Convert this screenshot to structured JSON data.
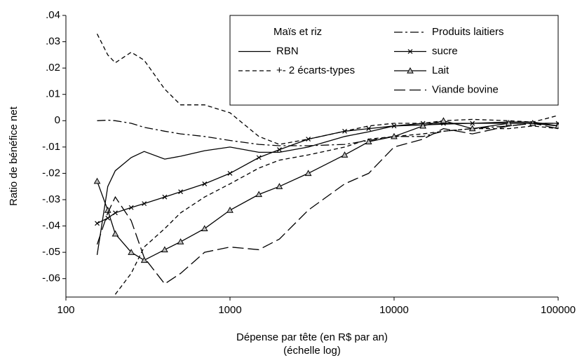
{
  "chart_data": {
    "type": "line",
    "ylabel": "Ratio de bénéfice net",
    "xlabel": [
      "Dépense par tête (en R$ par an)",
      "(échelle log)"
    ],
    "legend_title": "Maïs et riz",
    "legend": "upper right",
    "xscale": "log",
    "xlim": [
      100,
      100000
    ],
    "xticks": [
      100,
      1000,
      10000,
      100000
    ],
    "ylim": [
      -0.067,
      0.04
    ],
    "yticks": [
      {
        "value": 0.04,
        "label": ".04"
      },
      {
        "value": 0.03,
        "label": ".03"
      },
      {
        "value": 0.02,
        "label": ".02"
      },
      {
        "value": 0.01,
        "label": ".01"
      },
      0,
      {
        "value": -0.01,
        "label": "-.01"
      },
      {
        "value": -0.02,
        "label": "-.02"
      },
      {
        "value": -0.03,
        "label": "-.03"
      },
      {
        "value": -0.04,
        "label": "-.04"
      },
      {
        "value": -0.05,
        "label": "-.05"
      },
      {
        "value": -0.06,
        "label": "-.06"
      }
    ],
    "x": [
      155,
      180,
      200,
      250,
      300,
      400,
      500,
      700,
      1000,
      1500,
      2000,
      3000,
      5000,
      7000,
      10000,
      15000,
      20000,
      30000,
      50000,
      70000,
      100000
    ],
    "series": [
      {
        "name": "RBN",
        "color": "#000000",
        "dash": "solid",
        "values": [
          -0.051,
          -0.025,
          -0.019,
          -0.014,
          -0.0117,
          -0.0146,
          -0.0135,
          -0.0114,
          -0.01,
          -0.012,
          -0.012,
          -0.01,
          -0.006,
          -0.0042,
          -0.002,
          -0.0016,
          -0.0013,
          -0.001,
          -0.0005,
          -0.0005,
          -0.002
        ]
      },
      {
        "name": "+- 2 écarts-types",
        "color": "#000000",
        "dash": "dashed",
        "values": [
          0.033,
          0.025,
          0.022,
          0.026,
          0.023,
          0.012,
          0.006,
          0.006,
          0.003,
          -0.006,
          -0.009,
          -0.007,
          -0.004,
          -0.002,
          -0.001,
          -0.001,
          0,
          0.0005,
          0,
          -0.0005,
          0.002
        ],
        "lower": [
          null,
          null,
          -0.066,
          -0.058,
          -0.048,
          -0.041,
          -0.035,
          -0.029,
          -0.024,
          -0.018,
          -0.015,
          -0.013,
          -0.01,
          -0.007,
          -0.006,
          -0.005,
          -0.004,
          -0.003,
          -0.003,
          -0.002,
          -0.003
        ]
      },
      {
        "name": "Produits laitiers",
        "color": "#000000",
        "dash": "dashdot",
        "values": [
          0,
          0.0002,
          0,
          -0.001,
          -0.0025,
          -0.004,
          -0.005,
          -0.006,
          -0.0075,
          -0.009,
          -0.0095,
          -0.0095,
          -0.009,
          -0.0075,
          -0.006,
          -0.006,
          -0.004,
          -0.003,
          -0.002,
          -0.001,
          -0.001
        ]
      },
      {
        "name": "sucre",
        "color": "#000000",
        "dash": "solid",
        "marker": "x",
        "values": [
          -0.039,
          -0.037,
          -0.035,
          -0.033,
          -0.0315,
          -0.029,
          -0.027,
          -0.024,
          -0.02,
          -0.014,
          -0.011,
          -0.007,
          -0.004,
          -0.003,
          -0.002,
          -0.001,
          -0.001,
          -0.001,
          -0.001,
          -0.001,
          -0.001
        ]
      },
      {
        "name": "Lait",
        "color": "#000000",
        "dash": "solid",
        "marker": "triangle",
        "values": [
          -0.023,
          -0.034,
          -0.043,
          -0.05,
          -0.053,
          -0.049,
          -0.046,
          -0.041,
          -0.034,
          -0.028,
          -0.025,
          -0.02,
          -0.013,
          -0.008,
          -0.006,
          -0.002,
          0,
          -0.003,
          -0.001,
          -0.001,
          -0.002
        ]
      },
      {
        "name": "Viande bovine",
        "color": "#000000",
        "dash": "longdash",
        "values": [
          -0.047,
          -0.035,
          -0.029,
          -0.038,
          -0.052,
          -0.062,
          -0.058,
          -0.05,
          -0.048,
          -0.049,
          -0.045,
          -0.034,
          -0.024,
          -0.02,
          -0.01,
          -0.007,
          -0.003,
          -0.005,
          -0.002,
          -0.001,
          -0.003
        ]
      }
    ]
  }
}
